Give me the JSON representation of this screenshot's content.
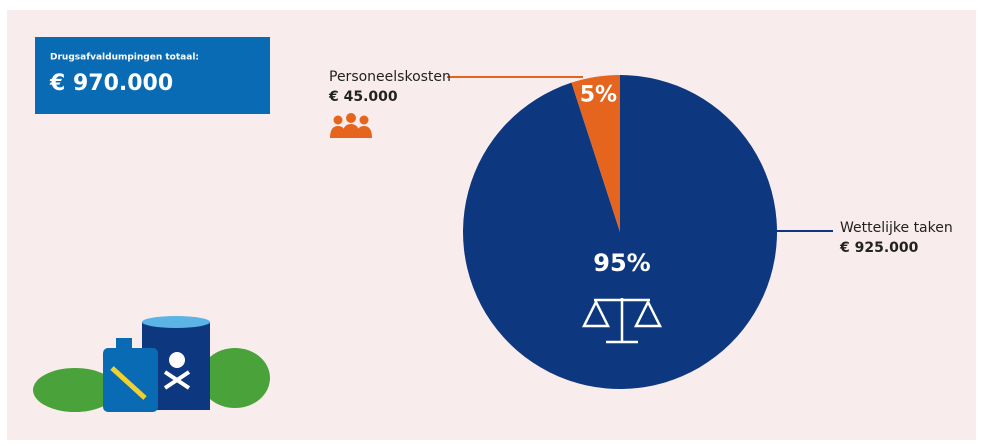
{
  "chart_data": {
    "type": "pie",
    "total_label": "Drugsafvaldumpingen totaal:",
    "total": "€ 970.000",
    "categories": [
      "Wettelijke taken",
      "Personeelskosten"
    ],
    "values": [
      95,
      5
    ],
    "value_labels": [
      "95%",
      "5%"
    ],
    "amounts": [
      "€ 925.000",
      "€ 45.000"
    ],
    "colors": [
      "#0d3880",
      "#e5651e"
    ]
  }
}
